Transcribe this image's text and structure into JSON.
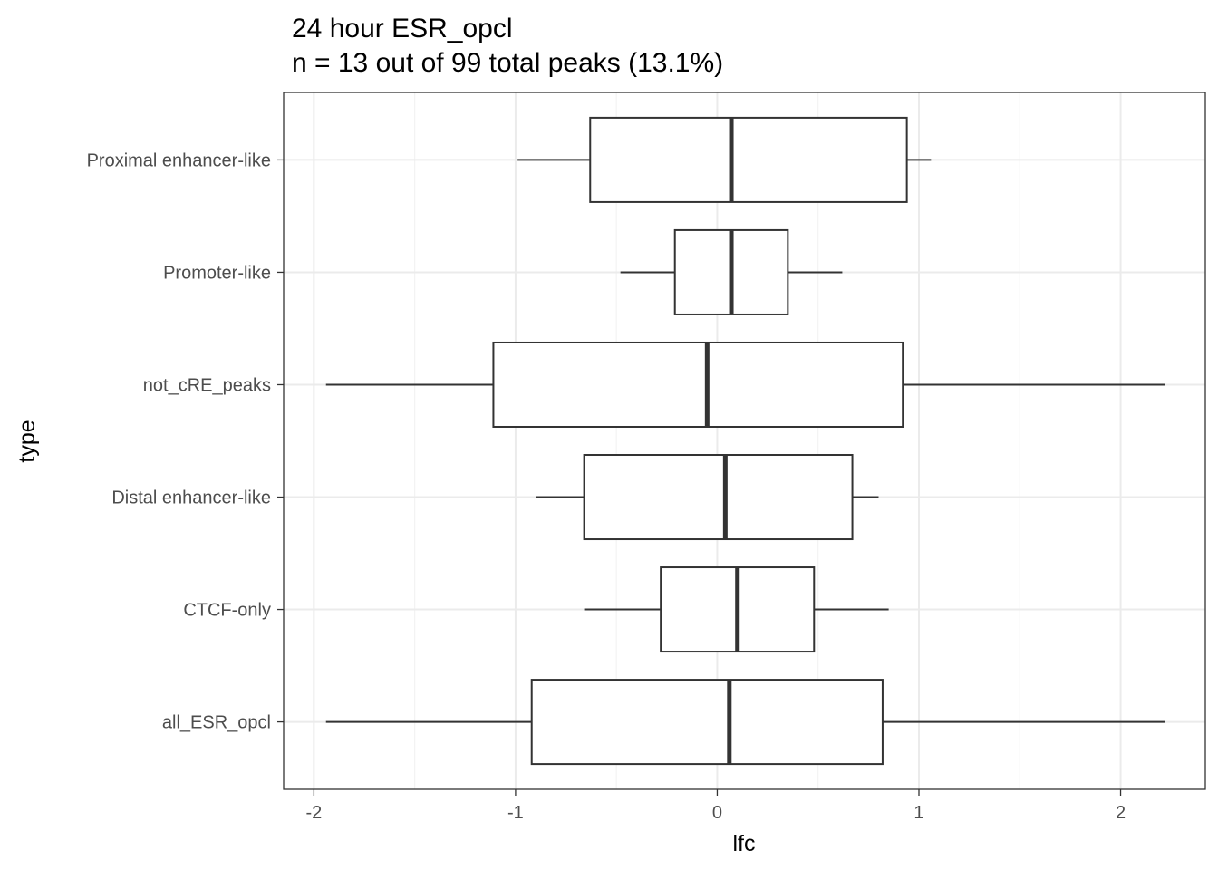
{
  "chart_data": {
    "type": "boxplot",
    "orientation": "horizontal",
    "title": "24 hour ESR_opcl",
    "subtitle": "n = 13 out of 99 total peaks (13.1%)",
    "xlabel": "lfc",
    "ylabel": "type",
    "xlim": [
      -2.15,
      2.42
    ],
    "xticks": [
      -2,
      -1,
      0,
      1,
      2
    ],
    "xtick_labels": [
      "-2",
      "-1",
      "0",
      "1",
      "2"
    ],
    "grid": true,
    "categories": [
      "Proximal enhancer-like",
      "Promoter-like",
      "not_cRE_peaks",
      "Distal enhancer-like",
      "CTCF-only",
      "all_ESR_opcl"
    ],
    "boxes": [
      {
        "category": "Proximal enhancer-like",
        "whisker_low": -0.99,
        "q1": -0.63,
        "median": 0.07,
        "q3": 0.94,
        "whisker_high": 1.06
      },
      {
        "category": "Promoter-like",
        "whisker_low": -0.48,
        "q1": -0.21,
        "median": 0.07,
        "q3": 0.35,
        "whisker_high": 0.62
      },
      {
        "category": "not_cRE_peaks",
        "whisker_low": -1.94,
        "q1": -1.11,
        "median": -0.05,
        "q3": 0.92,
        "whisker_high": 2.22
      },
      {
        "category": "Distal enhancer-like",
        "whisker_low": -0.9,
        "q1": -0.66,
        "median": 0.04,
        "q3": 0.67,
        "whisker_high": 0.8
      },
      {
        "category": "CTCF-only",
        "whisker_low": -0.66,
        "q1": -0.28,
        "median": 0.1,
        "q3": 0.48,
        "whisker_high": 0.85
      },
      {
        "category": "all_ESR_opcl",
        "whisker_low": -1.94,
        "q1": -0.92,
        "median": 0.06,
        "q3": 0.82,
        "whisker_high": 2.22
      }
    ],
    "colors": {
      "box_stroke": "#333333",
      "box_fill": "#ffffff",
      "grid_major": "#ebebeb",
      "grid_minor": "#f2f2f2",
      "panel_border": "#333333",
      "tick_text": "#4d4d4d"
    }
  }
}
